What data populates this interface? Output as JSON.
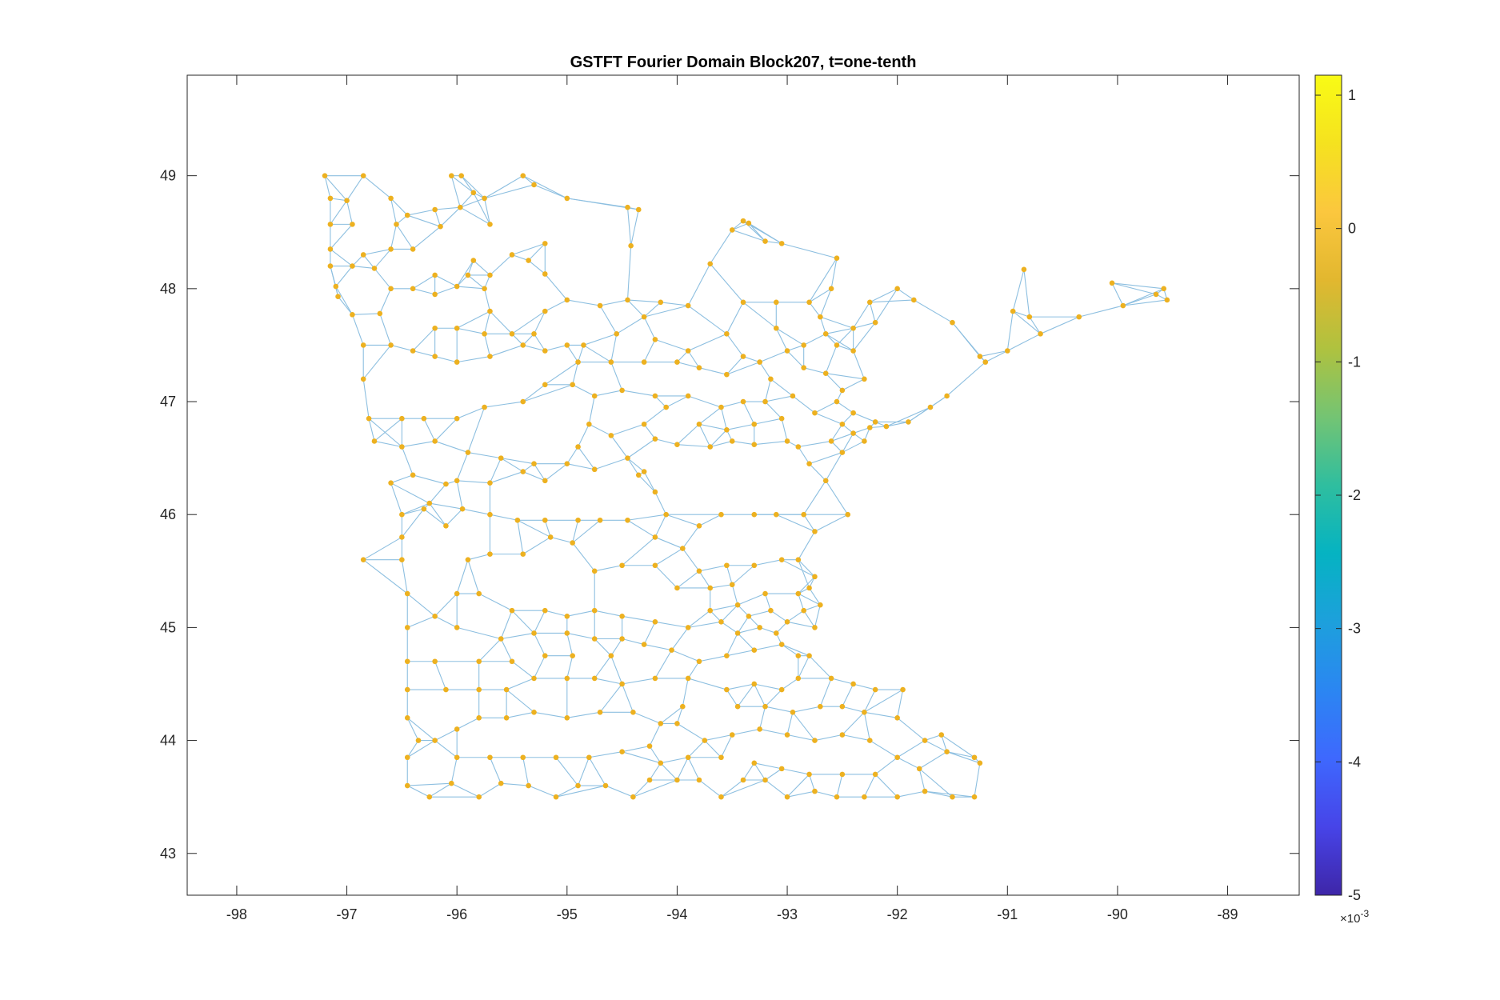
{
  "chart_data": {
    "type": "scatter",
    "title": "GSTFT Fourier Domain Block207, t=one-tenth",
    "xlabel": "",
    "ylabel": "",
    "xlim": [
      -98.45,
      -88.35
    ],
    "ylim": [
      42.63,
      49.89
    ],
    "xticks": [
      -98,
      -97,
      -96,
      -95,
      -94,
      -93,
      -92,
      -91,
      -90,
      -89
    ],
    "xtick_labels": [
      "-98",
      "-97",
      "-96",
      "-95",
      "-94",
      "-93",
      "-92",
      "-91",
      "-90",
      "-89"
    ],
    "yticks": [
      43,
      44,
      45,
      46,
      47,
      48,
      49
    ],
    "ytick_labels": [
      "43",
      "44",
      "45",
      "46",
      "47",
      "48",
      "49"
    ],
    "grid": false,
    "node_color": "#EDB120",
    "edge_color": "#8DBFE0",
    "colorbar": {
      "colormap": "parula",
      "range": [
        -5,
        1.15
      ],
      "ticks": [
        1,
        0,
        -1,
        -2,
        -3,
        -4,
        -5
      ],
      "tick_labels": [
        "1",
        "0",
        "-1",
        "-2",
        "-3",
        "-4",
        "-5"
      ],
      "exponent_label": "×10",
      "exponent_power": "-3",
      "stops": [
        "#3E26A8",
        "#4744E8",
        "#3E68FE",
        "#2B86F2",
        "#1DA0DC",
        "#05B3C2",
        "#2FBE9F",
        "#74C473",
        "#AFC23F",
        "#E2B72F",
        "#FBC73E",
        "#F5E21F",
        "#F9FB15"
      ]
    },
    "nodes": [
      [
        -97.2,
        49.0
      ],
      [
        -96.85,
        49.0
      ],
      [
        -96.05,
        49.0
      ],
      [
        -95.96,
        49.0
      ],
      [
        -95.4,
        49.0
      ],
      [
        -95.3,
        48.92
      ],
      [
        -95.85,
        48.85
      ],
      [
        -96.6,
        48.8
      ],
      [
        -97.0,
        48.78
      ],
      [
        -97.15,
        48.8
      ],
      [
        -97.15,
        48.57
      ],
      [
        -96.95,
        48.57
      ],
      [
        -96.55,
        48.57
      ],
      [
        -96.45,
        48.65
      ],
      [
        -96.2,
        48.7
      ],
      [
        -96.15,
        48.55
      ],
      [
        -95.97,
        48.72
      ],
      [
        -95.7,
        48.57
      ],
      [
        -95.75,
        48.8
      ],
      [
        -95.0,
        48.8
      ],
      [
        -94.45,
        48.72
      ],
      [
        -94.35,
        48.7
      ],
      [
        -93.5,
        48.52
      ],
      [
        -93.4,
        48.6
      ],
      [
        -93.35,
        48.58
      ],
      [
        -93.2,
        48.42
      ],
      [
        -93.05,
        48.4
      ],
      [
        -93.7,
        48.22
      ],
      [
        -94.42,
        48.38
      ],
      [
        -95.2,
        48.4
      ],
      [
        -95.35,
        48.25
      ],
      [
        -95.5,
        48.3
      ],
      [
        -95.85,
        48.25
      ],
      [
        -95.9,
        48.12
      ],
      [
        -96.2,
        48.12
      ],
      [
        -96.4,
        48.35
      ],
      [
        -96.6,
        48.35
      ],
      [
        -96.85,
        48.3
      ],
      [
        -97.15,
        48.35
      ],
      [
        -97.15,
        48.2
      ],
      [
        -96.95,
        48.2
      ],
      [
        -96.75,
        48.18
      ],
      [
        -97.1,
        48.02
      ],
      [
        -97.08,
        47.93
      ],
      [
        -96.95,
        47.77
      ],
      [
        -96.7,
        47.78
      ],
      [
        -96.6,
        48.0
      ],
      [
        -96.4,
        48.0
      ],
      [
        -96.2,
        47.95
      ],
      [
        -96.0,
        48.02
      ],
      [
        -95.75,
        48.0
      ],
      [
        -95.7,
        48.12
      ],
      [
        -95.2,
        48.13
      ],
      [
        -95.0,
        47.9
      ],
      [
        -94.45,
        47.9
      ],
      [
        -94.3,
        47.75
      ],
      [
        -94.15,
        47.88
      ],
      [
        -93.4,
        47.88
      ],
      [
        -93.1,
        47.88
      ],
      [
        -92.8,
        47.88
      ],
      [
        -92.7,
        47.75
      ],
      [
        -92.6,
        48.0
      ],
      [
        -92.55,
        48.27
      ],
      [
        -92.25,
        47.88
      ],
      [
        -92.0,
        48.0
      ],
      [
        -91.85,
        47.9
      ],
      [
        -91.5,
        47.7
      ],
      [
        -91.25,
        47.4
      ],
      [
        -90.95,
        47.8
      ],
      [
        -90.8,
        47.75
      ],
      [
        -90.7,
        47.6
      ],
      [
        -90.35,
        47.75
      ],
      [
        -90.05,
        48.05
      ],
      [
        -89.95,
        47.85
      ],
      [
        -89.65,
        47.95
      ],
      [
        -89.58,
        48.0
      ],
      [
        -89.55,
        47.9
      ],
      [
        -90.85,
        48.17
      ],
      [
        -91.0,
        47.45
      ],
      [
        -91.2,
        47.35
      ],
      [
        -91.55,
        47.05
      ],
      [
        -91.7,
        46.95
      ],
      [
        -91.9,
        46.82
      ],
      [
        -92.1,
        46.78
      ],
      [
        -92.25,
        46.77
      ],
      [
        -92.4,
        46.72
      ],
      [
        -92.5,
        46.8
      ],
      [
        -92.3,
        46.65
      ],
      [
        -92.6,
        46.65
      ],
      [
        -92.5,
        46.55
      ],
      [
        -92.65,
        46.3
      ],
      [
        -92.8,
        46.45
      ],
      [
        -92.9,
        46.6
      ],
      [
        -93.0,
        46.65
      ],
      [
        -93.3,
        46.62
      ],
      [
        -93.5,
        46.65
      ],
      [
        -93.7,
        46.6
      ],
      [
        -94.0,
        46.62
      ],
      [
        -94.2,
        46.67
      ],
      [
        -94.3,
        46.38
      ],
      [
        -94.45,
        46.5
      ],
      [
        -94.6,
        46.7
      ],
      [
        -94.8,
        46.8
      ],
      [
        -94.9,
        46.6
      ],
      [
        -95.0,
        46.45
      ],
      [
        -95.2,
        46.3
      ],
      [
        -95.4,
        46.38
      ],
      [
        -95.7,
        46.28
      ],
      [
        -96.0,
        46.3
      ],
      [
        -96.1,
        46.27
      ],
      [
        -96.4,
        46.35
      ],
      [
        -96.6,
        46.28
      ],
      [
        -96.5,
        46.6
      ],
      [
        -96.75,
        46.65
      ],
      [
        -96.8,
        46.85
      ],
      [
        -96.85,
        47.2
      ],
      [
        -96.85,
        47.5
      ],
      [
        -96.6,
        47.5
      ],
      [
        -96.4,
        47.45
      ],
      [
        -96.2,
        47.4
      ],
      [
        -96.0,
        47.35
      ],
      [
        -95.7,
        47.4
      ],
      [
        -95.4,
        47.5
      ],
      [
        -95.2,
        47.45
      ],
      [
        -95.0,
        47.5
      ],
      [
        -94.9,
        47.35
      ],
      [
        -94.6,
        47.35
      ],
      [
        -94.3,
        47.35
      ],
      [
        -94.0,
        47.35
      ],
      [
        -93.8,
        47.3
      ],
      [
        -93.55,
        47.24
      ],
      [
        -93.25,
        47.35
      ],
      [
        -93.0,
        47.45
      ],
      [
        -92.85,
        47.5
      ],
      [
        -92.55,
        47.5
      ],
      [
        -92.4,
        47.45
      ],
      [
        -92.3,
        47.2
      ],
      [
        -92.5,
        47.1
      ],
      [
        -92.4,
        46.9
      ],
      [
        -92.2,
        46.82
      ],
      [
        -92.95,
        47.05
      ],
      [
        -93.2,
        47.0
      ],
      [
        -93.4,
        47.0
      ],
      [
        -93.6,
        46.95
      ],
      [
        -93.9,
        47.05
      ],
      [
        -94.2,
        47.05
      ],
      [
        -94.5,
        47.1
      ],
      [
        -94.75,
        47.05
      ],
      [
        -94.95,
        47.15
      ],
      [
        -95.2,
        47.15
      ],
      [
        -95.4,
        47.0
      ],
      [
        -95.75,
        46.95
      ],
      [
        -96.0,
        46.85
      ],
      [
        -96.3,
        46.85
      ],
      [
        -96.5,
        46.85
      ],
      [
        -96.2,
        46.65
      ],
      [
        -95.9,
        46.55
      ],
      [
        -95.6,
        46.5
      ],
      [
        -95.3,
        46.45
      ],
      [
        -94.75,
        46.4
      ],
      [
        -94.35,
        46.35
      ],
      [
        -94.2,
        46.2
      ],
      [
        -94.1,
        46.0
      ],
      [
        -93.8,
        45.9
      ],
      [
        -93.6,
        46.0
      ],
      [
        -93.3,
        46.0
      ],
      [
        -93.1,
        46.0
      ],
      [
        -92.85,
        46.0
      ],
      [
        -92.45,
        46.0
      ],
      [
        -92.75,
        45.85
      ],
      [
        -92.9,
        45.6
      ],
      [
        -92.75,
        45.45
      ],
      [
        -92.7,
        45.2
      ],
      [
        -92.75,
        45.0
      ],
      [
        -92.8,
        44.75
      ],
      [
        -92.6,
        44.55
      ],
      [
        -92.4,
        44.5
      ],
      [
        -92.2,
        44.45
      ],
      [
        -92.0,
        44.2
      ],
      [
        -91.75,
        44.0
      ],
      [
        -91.6,
        44.05
      ],
      [
        -91.55,
        43.9
      ],
      [
        -91.3,
        43.85
      ],
      [
        -91.25,
        43.8
      ],
      [
        -91.3,
        43.5
      ],
      [
        -91.5,
        43.5
      ],
      [
        -91.75,
        43.55
      ],
      [
        -92.0,
        43.5
      ],
      [
        -92.3,
        43.5
      ],
      [
        -92.55,
        43.5
      ],
      [
        -92.75,
        43.55
      ],
      [
        -93.0,
        43.5
      ],
      [
        -93.2,
        43.65
      ],
      [
        -93.4,
        43.65
      ],
      [
        -93.6,
        43.5
      ],
      [
        -93.8,
        43.65
      ],
      [
        -94.0,
        43.65
      ],
      [
        -94.25,
        43.65
      ],
      [
        -94.4,
        43.5
      ],
      [
        -94.65,
        43.6
      ],
      [
        -94.9,
        43.6
      ],
      [
        -95.1,
        43.5
      ],
      [
        -95.35,
        43.6
      ],
      [
        -95.6,
        43.62
      ],
      [
        -95.8,
        43.5
      ],
      [
        -96.05,
        43.62
      ],
      [
        -96.25,
        43.5
      ],
      [
        -96.45,
        43.6
      ],
      [
        -96.45,
        43.85
      ],
      [
        -96.35,
        44.0
      ],
      [
        -96.45,
        44.2
      ],
      [
        -96.45,
        44.45
      ],
      [
        -96.45,
        44.7
      ],
      [
        -96.45,
        45.0
      ],
      [
        -96.45,
        45.3
      ],
      [
        -96.5,
        45.6
      ],
      [
        -96.85,
        45.6
      ],
      [
        -96.5,
        45.8
      ],
      [
        -96.5,
        46.0
      ],
      [
        -96.3,
        46.05
      ],
      [
        -96.1,
        45.9
      ],
      [
        -95.9,
        45.6
      ],
      [
        -95.7,
        45.65
      ],
      [
        -95.4,
        45.65
      ],
      [
        -95.15,
        45.8
      ],
      [
        -94.95,
        45.75
      ],
      [
        -94.75,
        45.5
      ],
      [
        -94.5,
        45.55
      ],
      [
        -94.2,
        45.55
      ],
      [
        -94.0,
        45.35
      ],
      [
        -93.8,
        45.5
      ],
      [
        -93.55,
        45.55
      ],
      [
        -93.3,
        45.55
      ],
      [
        -93.05,
        45.6
      ],
      [
        -92.9,
        45.3
      ],
      [
        -93.2,
        45.3
      ],
      [
        -93.45,
        45.2
      ],
      [
        -93.7,
        45.15
      ],
      [
        -93.9,
        45.0
      ],
      [
        -94.2,
        45.05
      ],
      [
        -94.5,
        45.1
      ],
      [
        -94.75,
        45.15
      ],
      [
        -95.0,
        45.1
      ],
      [
        -95.2,
        45.15
      ],
      [
        -95.5,
        45.15
      ],
      [
        -95.8,
        45.3
      ],
      [
        -96.0,
        45.3
      ],
      [
        -96.2,
        45.1
      ],
      [
        -96.0,
        45.0
      ],
      [
        -95.6,
        44.9
      ],
      [
        -95.3,
        44.95
      ],
      [
        -95.0,
        44.95
      ],
      [
        -94.75,
        44.9
      ],
      [
        -94.5,
        44.9
      ],
      [
        -94.3,
        44.85
      ],
      [
        -94.05,
        44.8
      ],
      [
        -93.8,
        44.7
      ],
      [
        -93.55,
        44.75
      ],
      [
        -93.3,
        44.8
      ],
      [
        -93.05,
        44.85
      ],
      [
        -93.45,
        44.95
      ],
      [
        -93.25,
        45.0
      ],
      [
        -93.1,
        44.95
      ],
      [
        -93.6,
        45.05
      ],
      [
        -93.35,
        45.1
      ],
      [
        -93.15,
        45.15
      ],
      [
        -93.9,
        44.55
      ],
      [
        -94.2,
        44.55
      ],
      [
        -94.5,
        44.5
      ],
      [
        -94.75,
        44.55
      ],
      [
        -95.0,
        44.55
      ],
      [
        -95.3,
        44.55
      ],
      [
        -95.55,
        44.45
      ],
      [
        -95.8,
        44.45
      ],
      [
        -96.1,
        44.45
      ],
      [
        -96.2,
        44.7
      ],
      [
        -95.8,
        44.7
      ],
      [
        -95.5,
        44.7
      ],
      [
        -95.2,
        44.75
      ],
      [
        -94.95,
        44.75
      ],
      [
        -94.6,
        44.75
      ],
      [
        -93.55,
        44.45
      ],
      [
        -93.3,
        44.5
      ],
      [
        -93.05,
        44.45
      ],
      [
        -92.9,
        44.55
      ],
      [
        -93.95,
        44.3
      ],
      [
        -94.15,
        44.15
      ],
      [
        -94.4,
        44.25
      ],
      [
        -94.7,
        44.25
      ],
      [
        -95.0,
        44.2
      ],
      [
        -95.3,
        44.25
      ],
      [
        -95.55,
        44.2
      ],
      [
        -95.8,
        44.2
      ],
      [
        -96.0,
        44.1
      ],
      [
        -96.2,
        44.0
      ],
      [
        -96.0,
        43.85
      ],
      [
        -95.7,
        43.85
      ],
      [
        -95.4,
        43.85
      ],
      [
        -95.1,
        43.85
      ],
      [
        -94.8,
        43.85
      ],
      [
        -94.5,
        43.9
      ],
      [
        -94.25,
        43.95
      ],
      [
        -94.0,
        44.15
      ],
      [
        -93.75,
        44.0
      ],
      [
        -93.5,
        44.05
      ],
      [
        -93.25,
        44.1
      ],
      [
        -93.0,
        44.05
      ],
      [
        -92.75,
        44.0
      ],
      [
        -92.5,
        44.05
      ],
      [
        -92.25,
        44.0
      ],
      [
        -92.0,
        43.85
      ],
      [
        -91.8,
        43.75
      ],
      [
        -92.2,
        43.7
      ],
      [
        -92.5,
        43.7
      ],
      [
        -92.8,
        43.7
      ],
      [
        -93.05,
        43.75
      ],
      [
        -93.3,
        43.8
      ],
      [
        -93.6,
        43.85
      ],
      [
        -93.9,
        43.85
      ],
      [
        -94.15,
        43.8
      ],
      [
        -93.45,
        44.3
      ],
      [
        -93.2,
        44.3
      ],
      [
        -92.95,
        44.25
      ],
      [
        -92.7,
        44.3
      ],
      [
        -92.5,
        44.3
      ],
      [
        -92.3,
        44.25
      ],
      [
        -91.95,
        44.45
      ],
      [
        -92.9,
        44.75
      ],
      [
        -93.0,
        45.05
      ],
      [
        -92.85,
        45.15
      ],
      [
        -92.8,
        45.35
      ],
      [
        -93.5,
        45.38
      ],
      [
        -93.7,
        45.35
      ],
      [
        -93.95,
        45.7
      ],
      [
        -94.2,
        45.8
      ],
      [
        -94.45,
        45.95
      ],
      [
        -94.7,
        45.95
      ],
      [
        -94.9,
        45.95
      ],
      [
        -95.2,
        45.95
      ],
      [
        -95.45,
        45.95
      ],
      [
        -95.7,
        46.0
      ],
      [
        -95.95,
        46.05
      ],
      [
        -96.25,
        46.1
      ],
      [
        -94.3,
        46.8
      ],
      [
        -94.1,
        46.95
      ],
      [
        -94.55,
        47.6
      ],
      [
        -94.85,
        47.5
      ],
      [
        -94.7,
        47.85
      ],
      [
        -95.2,
        47.8
      ],
      [
        -95.7,
        47.8
      ],
      [
        -96.2,
        47.65
      ],
      [
        -96.0,
        47.65
      ],
      [
        -95.75,
        47.6
      ],
      [
        -95.5,
        47.6
      ],
      [
        -95.3,
        47.6
      ],
      [
        -93.9,
        47.85
      ],
      [
        -93.55,
        47.6
      ],
      [
        -93.1,
        47.65
      ],
      [
        -92.65,
        47.6
      ],
      [
        -92.4,
        47.65
      ],
      [
        -92.2,
        47.7
      ],
      [
        -93.9,
        47.45
      ],
      [
        -94.2,
        47.55
      ],
      [
        -93.4,
        47.4
      ],
      [
        -93.15,
        47.2
      ],
      [
        -92.85,
        47.3
      ],
      [
        -92.65,
        47.25
      ],
      [
        -92.55,
        47.0
      ],
      [
        -92.75,
        46.9
      ],
      [
        -93.55,
        46.75
      ],
      [
        -93.8,
        46.8
      ],
      [
        -93.3,
        46.8
      ],
      [
        -93.05,
        46.85
      ]
    ]
  }
}
